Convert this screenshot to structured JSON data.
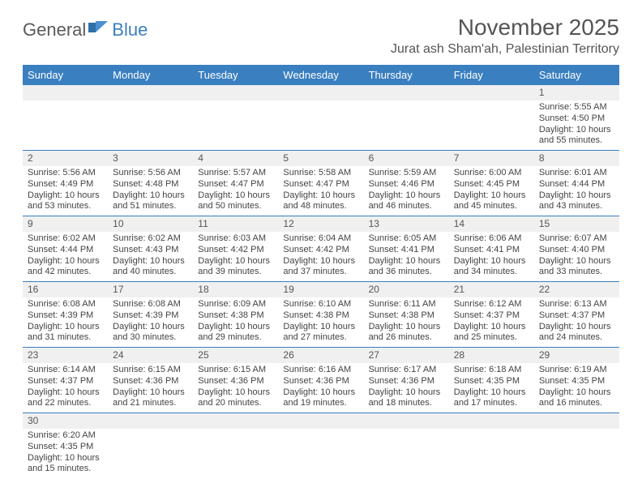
{
  "logo": {
    "part1": "General",
    "part2": "Blue"
  },
  "header": {
    "month_title": "November 2025",
    "location": "Jurat ash Sham'ah, Palestinian Territory"
  },
  "colors": {
    "header_bg": "#3a7fc0",
    "header_text": "#ffffff",
    "daynum_bg": "#f0f0f0",
    "row_divider": "#3a7fc0",
    "body_text": "#444444",
    "title_text": "#555555"
  },
  "typography": {
    "month_title_fontsize": 28,
    "location_fontsize": 16,
    "dayheader_fontsize": 13,
    "cell_fontsize": 11
  },
  "day_headers": [
    "Sunday",
    "Monday",
    "Tuesday",
    "Wednesday",
    "Thursday",
    "Friday",
    "Saturday"
  ],
  "weeks": [
    [
      null,
      null,
      null,
      null,
      null,
      null,
      {
        "n": "1",
        "sunrise": "Sunrise: 5:55 AM",
        "sunset": "Sunset: 4:50 PM",
        "daylight": "Daylight: 10 hours and 55 minutes."
      }
    ],
    [
      {
        "n": "2",
        "sunrise": "Sunrise: 5:56 AM",
        "sunset": "Sunset: 4:49 PM",
        "daylight": "Daylight: 10 hours and 53 minutes."
      },
      {
        "n": "3",
        "sunrise": "Sunrise: 5:56 AM",
        "sunset": "Sunset: 4:48 PM",
        "daylight": "Daylight: 10 hours and 51 minutes."
      },
      {
        "n": "4",
        "sunrise": "Sunrise: 5:57 AM",
        "sunset": "Sunset: 4:47 PM",
        "daylight": "Daylight: 10 hours and 50 minutes."
      },
      {
        "n": "5",
        "sunrise": "Sunrise: 5:58 AM",
        "sunset": "Sunset: 4:47 PM",
        "daylight": "Daylight: 10 hours and 48 minutes."
      },
      {
        "n": "6",
        "sunrise": "Sunrise: 5:59 AM",
        "sunset": "Sunset: 4:46 PM",
        "daylight": "Daylight: 10 hours and 46 minutes."
      },
      {
        "n": "7",
        "sunrise": "Sunrise: 6:00 AM",
        "sunset": "Sunset: 4:45 PM",
        "daylight": "Daylight: 10 hours and 45 minutes."
      },
      {
        "n": "8",
        "sunrise": "Sunrise: 6:01 AM",
        "sunset": "Sunset: 4:44 PM",
        "daylight": "Daylight: 10 hours and 43 minutes."
      }
    ],
    [
      {
        "n": "9",
        "sunrise": "Sunrise: 6:02 AM",
        "sunset": "Sunset: 4:44 PM",
        "daylight": "Daylight: 10 hours and 42 minutes."
      },
      {
        "n": "10",
        "sunrise": "Sunrise: 6:02 AM",
        "sunset": "Sunset: 4:43 PM",
        "daylight": "Daylight: 10 hours and 40 minutes."
      },
      {
        "n": "11",
        "sunrise": "Sunrise: 6:03 AM",
        "sunset": "Sunset: 4:42 PM",
        "daylight": "Daylight: 10 hours and 39 minutes."
      },
      {
        "n": "12",
        "sunrise": "Sunrise: 6:04 AM",
        "sunset": "Sunset: 4:42 PM",
        "daylight": "Daylight: 10 hours and 37 minutes."
      },
      {
        "n": "13",
        "sunrise": "Sunrise: 6:05 AM",
        "sunset": "Sunset: 4:41 PM",
        "daylight": "Daylight: 10 hours and 36 minutes."
      },
      {
        "n": "14",
        "sunrise": "Sunrise: 6:06 AM",
        "sunset": "Sunset: 4:41 PM",
        "daylight": "Daylight: 10 hours and 34 minutes."
      },
      {
        "n": "15",
        "sunrise": "Sunrise: 6:07 AM",
        "sunset": "Sunset: 4:40 PM",
        "daylight": "Daylight: 10 hours and 33 minutes."
      }
    ],
    [
      {
        "n": "16",
        "sunrise": "Sunrise: 6:08 AM",
        "sunset": "Sunset: 4:39 PM",
        "daylight": "Daylight: 10 hours and 31 minutes."
      },
      {
        "n": "17",
        "sunrise": "Sunrise: 6:08 AM",
        "sunset": "Sunset: 4:39 PM",
        "daylight": "Daylight: 10 hours and 30 minutes."
      },
      {
        "n": "18",
        "sunrise": "Sunrise: 6:09 AM",
        "sunset": "Sunset: 4:38 PM",
        "daylight": "Daylight: 10 hours and 29 minutes."
      },
      {
        "n": "19",
        "sunrise": "Sunrise: 6:10 AM",
        "sunset": "Sunset: 4:38 PM",
        "daylight": "Daylight: 10 hours and 27 minutes."
      },
      {
        "n": "20",
        "sunrise": "Sunrise: 6:11 AM",
        "sunset": "Sunset: 4:38 PM",
        "daylight": "Daylight: 10 hours and 26 minutes."
      },
      {
        "n": "21",
        "sunrise": "Sunrise: 6:12 AM",
        "sunset": "Sunset: 4:37 PM",
        "daylight": "Daylight: 10 hours and 25 minutes."
      },
      {
        "n": "22",
        "sunrise": "Sunrise: 6:13 AM",
        "sunset": "Sunset: 4:37 PM",
        "daylight": "Daylight: 10 hours and 24 minutes."
      }
    ],
    [
      {
        "n": "23",
        "sunrise": "Sunrise: 6:14 AM",
        "sunset": "Sunset: 4:37 PM",
        "daylight": "Daylight: 10 hours and 22 minutes."
      },
      {
        "n": "24",
        "sunrise": "Sunrise: 6:15 AM",
        "sunset": "Sunset: 4:36 PM",
        "daylight": "Daylight: 10 hours and 21 minutes."
      },
      {
        "n": "25",
        "sunrise": "Sunrise: 6:15 AM",
        "sunset": "Sunset: 4:36 PM",
        "daylight": "Daylight: 10 hours and 20 minutes."
      },
      {
        "n": "26",
        "sunrise": "Sunrise: 6:16 AM",
        "sunset": "Sunset: 4:36 PM",
        "daylight": "Daylight: 10 hours and 19 minutes."
      },
      {
        "n": "27",
        "sunrise": "Sunrise: 6:17 AM",
        "sunset": "Sunset: 4:36 PM",
        "daylight": "Daylight: 10 hours and 18 minutes."
      },
      {
        "n": "28",
        "sunrise": "Sunrise: 6:18 AM",
        "sunset": "Sunset: 4:35 PM",
        "daylight": "Daylight: 10 hours and 17 minutes."
      },
      {
        "n": "29",
        "sunrise": "Sunrise: 6:19 AM",
        "sunset": "Sunset: 4:35 PM",
        "daylight": "Daylight: 10 hours and 16 minutes."
      }
    ],
    [
      {
        "n": "30",
        "sunrise": "Sunrise: 6:20 AM",
        "sunset": "Sunset: 4:35 PM",
        "daylight": "Daylight: 10 hours and 15 minutes."
      },
      null,
      null,
      null,
      null,
      null,
      null
    ]
  ]
}
